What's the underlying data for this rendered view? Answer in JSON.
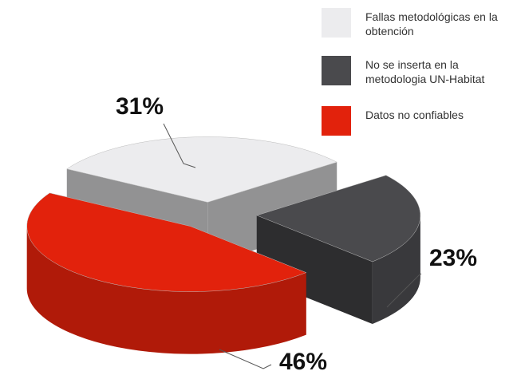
{
  "chart_data": {
    "type": "pie",
    "categories": [
      "Fallas metodológicas en la obtención",
      "No se inserta en la metodologia UN-Habitat",
      "Datos no confiables"
    ],
    "values": [
      31,
      23,
      46
    ],
    "value_labels": [
      "31%",
      "23%",
      "46%"
    ],
    "colors": [
      "#ececee",
      "#4a4a4d",
      "#e2220c"
    ]
  }
}
